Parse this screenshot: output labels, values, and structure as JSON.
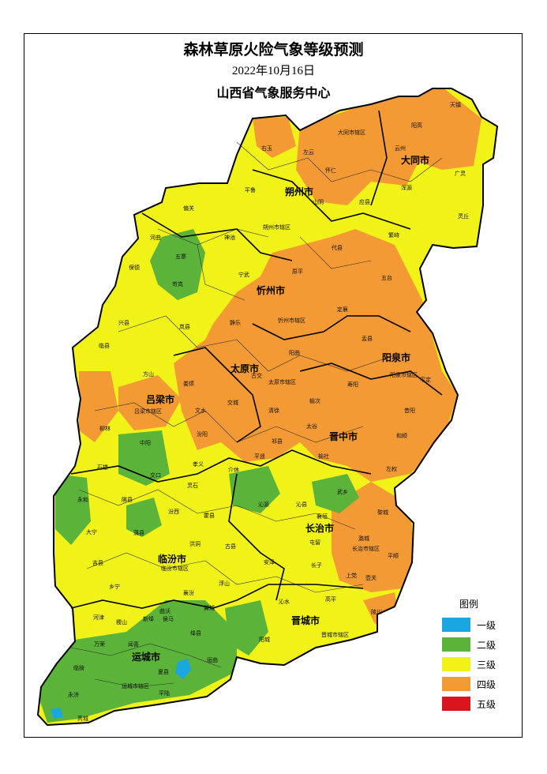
{
  "title": {
    "main": "森林草原火险气象等级预测",
    "date": "2022年10月16日",
    "org": "山西省气象服务中心"
  },
  "legend": {
    "title": "图例",
    "items": [
      {
        "label": "一级",
        "color": "#1aa7e0"
      },
      {
        "label": "二级",
        "color": "#5cb33a"
      },
      {
        "label": "三级",
        "color": "#f0f218"
      },
      {
        "label": "四级",
        "color": "#f39a34"
      },
      {
        "label": "五级",
        "color": "#d9141c"
      }
    ]
  },
  "cities": [
    "大同市",
    "朔州市",
    "忻州市",
    "阳泉市",
    "太原市",
    "吕梁市",
    "晋中市",
    "长治市",
    "临汾市",
    "晋城市",
    "运城市"
  ],
  "counties": [
    "天镇",
    "阳高",
    "大同市辖区",
    "云州",
    "广灵",
    "浑源",
    "灵丘",
    "左云",
    "右玉",
    "怀仁",
    "应县",
    "山阴",
    "平鲁",
    "朔州市辖区",
    "偏关",
    "河曲",
    "神池",
    "五寨",
    "保德",
    "岢岚",
    "宁武",
    "代县",
    "繁峙",
    "原平",
    "五台",
    "静乐",
    "忻州市辖区",
    "定襄",
    "盂县",
    "阳泉市辖区",
    "平定",
    "兴县",
    "岚县",
    "临县",
    "方山",
    "娄烦",
    "阳曲",
    "古交",
    "太原市辖区",
    "交城",
    "清徐",
    "吕梁市辖区",
    "文水",
    "寿阳",
    "榆次",
    "昔阳",
    "和顺",
    "太谷",
    "柳林",
    "中阳",
    "汾阳",
    "祁县",
    "石楼",
    "交口",
    "孝义",
    "介休",
    "平遥",
    "灵石",
    "左权",
    "榆社",
    "武乡",
    "沁源",
    "沁县",
    "襄垣",
    "黎城",
    "潞城",
    "屯留",
    "长治市辖区",
    "平顺",
    "壶关",
    "长子",
    "上党",
    "永和",
    "隰县",
    "汾西",
    "霍县",
    "大宁",
    "蒲县",
    "洪洞",
    "古县",
    "安泽",
    "吉县",
    "临汾市辖区",
    "乡宁",
    "浮山",
    "襄汾",
    "曲沃",
    "翼城",
    "沁水",
    "高平",
    "陵川",
    "晋城市辖区",
    "阳城",
    "河津",
    "稷山",
    "新绛",
    "侯马",
    "绛县",
    "万荣",
    "闻喜",
    "垣曲",
    "临猗",
    "运城市辖区",
    "夏县",
    "平陆",
    "永济",
    "芮城"
  ]
}
